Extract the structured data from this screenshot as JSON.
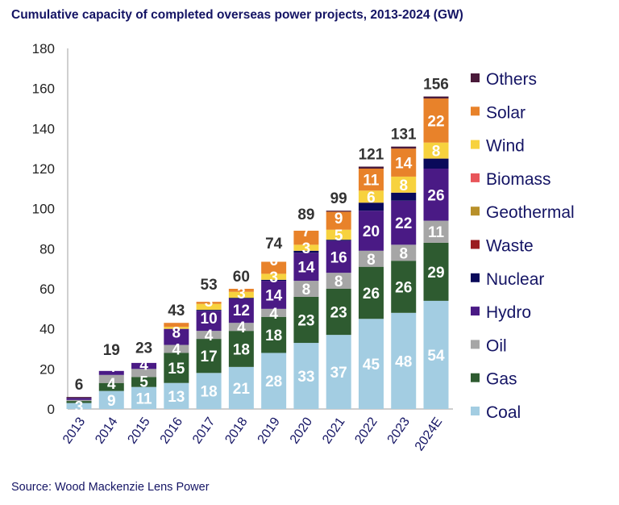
{
  "chart_data": {
    "type": "bar",
    "stacked": true,
    "title": "Cumulative capacity of completed overseas power projects, 2013-2024 (GW)",
    "source": "Source: Wood Mackenzie Lens Power",
    "xlabel": "",
    "ylabel": "",
    "ylim": [
      0,
      180
    ],
    "yticks": [
      0,
      20,
      40,
      60,
      80,
      100,
      120,
      140,
      160,
      180
    ],
    "grid": false,
    "legend": "right",
    "categories": [
      "2013",
      "2014",
      "2015",
      "2016",
      "2017",
      "2018",
      "2019",
      "2020",
      "2021",
      "2022",
      "2023",
      "2024E"
    ],
    "totals": [
      6,
      19,
      23,
      43,
      53,
      60,
      74,
      89,
      99,
      121,
      131,
      156
    ],
    "series": [
      {
        "name": "Coal",
        "color": "#a3cde2",
        "values": [
          3,
          9,
          11,
          13,
          18,
          21,
          28,
          33,
          37,
          45,
          48,
          54
        ],
        "labels": [
          "3",
          "9",
          "11",
          "13",
          "18",
          "21",
          "28",
          "33",
          "37",
          "45",
          "48",
          "54"
        ]
      },
      {
        "name": "Gas",
        "color": "#2e5b30",
        "values": [
          1,
          4,
          5,
          15,
          17,
          18,
          18,
          23,
          23,
          26,
          26,
          29
        ],
        "labels": [
          "",
          "4",
          "5",
          "15",
          "17",
          "18",
          "18",
          "23",
          "23",
          "26",
          "26",
          "29"
        ]
      },
      {
        "name": "Oil",
        "color": "#a6a6a6",
        "values": [
          0.5,
          4,
          4,
          4,
          4,
          4,
          4,
          8,
          8,
          8,
          8,
          11
        ],
        "labels": [
          "",
          "4",
          "4",
          "4",
          "4",
          "4",
          "4",
          "8",
          "8",
          "8",
          "8",
          "11"
        ]
      },
      {
        "name": "Hydro",
        "color": "#4a1a85",
        "values": [
          1,
          2,
          3,
          8,
          10,
          12,
          14,
          14,
          16,
          20,
          22,
          26
        ],
        "labels": [
          "",
          "",
          "",
          "8",
          "10",
          "12",
          "14",
          "14",
          "16",
          "20",
          "22",
          "26"
        ]
      },
      {
        "name": "Nuclear",
        "color": "#0a0a5a",
        "values": [
          0,
          0,
          0,
          0,
          0.5,
          0.5,
          0.5,
          1,
          0.5,
          4,
          4,
          5
        ],
        "labels": [
          "",
          "",
          "",
          "",
          "",
          "",
          "",
          "",
          "",
          "",
          "",
          ""
        ]
      },
      {
        "name": "Waste",
        "color": "#9b1b1f",
        "values": [
          0,
          0,
          0,
          0,
          0,
          0,
          0,
          0,
          0,
          0,
          0,
          0
        ],
        "labels": [
          "",
          "",
          "",
          "",
          "",
          "",
          "",
          "",
          "",
          "",
          "",
          ""
        ]
      },
      {
        "name": "Geothermal",
        "color": "#b8902a",
        "values": [
          0,
          0,
          0,
          0,
          0,
          0,
          0,
          0,
          0,
          0,
          0,
          0
        ],
        "labels": [
          "",
          "",
          "",
          "",
          "",
          "",
          "",
          "",
          "",
          "",
          "",
          ""
        ]
      },
      {
        "name": "Biomass",
        "color": "#e8555a",
        "values": [
          0,
          0,
          0,
          0,
          0,
          0,
          0,
          0,
          0,
          0,
          0,
          0
        ],
        "labels": [
          "",
          "",
          "",
          "",
          "",
          "",
          "",
          "",
          "",
          "",
          "",
          ""
        ]
      },
      {
        "name": "Wind",
        "color": "#f7d23e",
        "values": [
          0,
          0,
          0,
          1,
          3,
          3,
          3,
          3,
          5,
          6,
          8,
          8
        ],
        "labels": [
          "",
          "",
          "",
          "",
          "3",
          "3",
          "3",
          "3",
          "5",
          "6",
          "8",
          "8"
        ]
      },
      {
        "name": "Solar",
        "color": "#e8822a",
        "values": [
          0,
          0,
          0,
          2,
          1,
          1.5,
          6,
          7,
          9,
          11,
          14,
          22
        ],
        "labels": [
          "",
          "",
          "",
          "",
          "",
          "",
          "6",
          "7",
          "9",
          "11",
          "14",
          "22"
        ]
      },
      {
        "name": "Others",
        "color": "#4a1a3a",
        "values": [
          0.5,
          0,
          0,
          0,
          0,
          0,
          0,
          0,
          0.5,
          1,
          1,
          1
        ],
        "labels": [
          "",
          "",
          "",
          "",
          "",
          "",
          "",
          "",
          "",
          "",
          "",
          ""
        ]
      }
    ]
  }
}
